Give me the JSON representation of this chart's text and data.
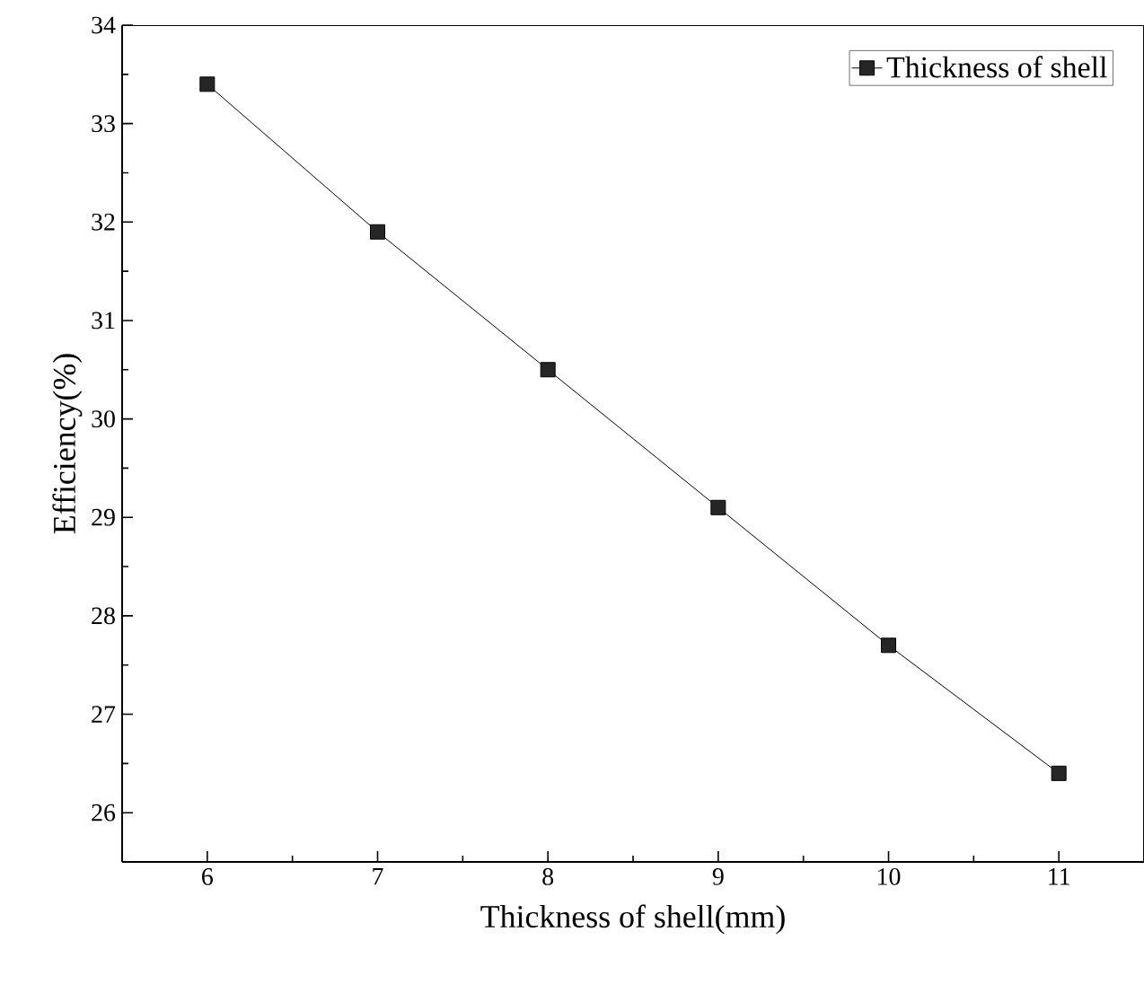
{
  "chart_data": {
    "type": "line",
    "xlabel": "Thickness of shell(mm)",
    "ylabel": "Efficiency(%)",
    "x": [
      6,
      7,
      8,
      9,
      10,
      11
    ],
    "series": [
      {
        "name": "Thickness of shell",
        "color": "#000000",
        "values": [
          33.4,
          31.9,
          30.5,
          29.1,
          27.7,
          26.4
        ]
      }
    ],
    "xlim": [
      5.5,
      11.5
    ],
    "ylim": [
      25.5,
      34
    ],
    "xticks": [
      6,
      7,
      8,
      9,
      10,
      11
    ],
    "yticks": [
      26,
      27,
      28,
      29,
      30,
      31,
      32,
      33,
      34
    ],
    "legend": "top right",
    "marker": "square",
    "line_style": "solid",
    "grid": false
  }
}
